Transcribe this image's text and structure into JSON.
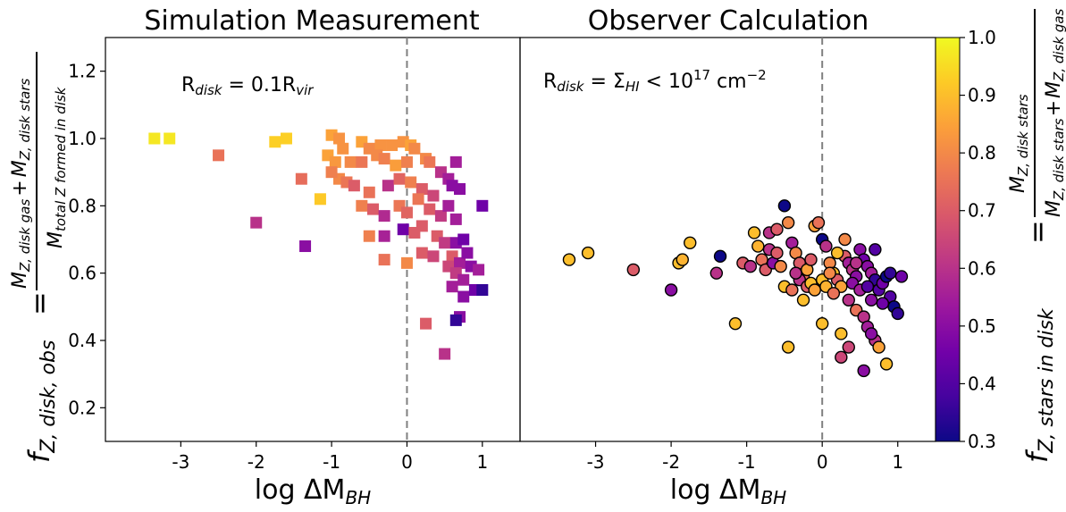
{
  "colors": {
    "colormap": [
      "#0d0887",
      "#46039f",
      "#7201a8",
      "#9c179e",
      "#bd3786",
      "#d8576b",
      "#ed7953",
      "#fb9f3a",
      "#fdca26",
      "#f0f921"
    ],
    "marker_edge": "#000000",
    "zero_line": "#808080"
  },
  "chart_data": [
    {
      "type": "scatter",
      "panel": "left",
      "marker": "square",
      "title": "Simulation Measurement",
      "annotation": "R_disk = 0.1R_vir",
      "annotation_parts": {
        "base": "R",
        "sub": "disk",
        "mid": " = 0.1R",
        "sub2": "vir"
      },
      "xlabel": "log ΔM_BH",
      "xlabel_parts": {
        "base": "log ΔM",
        "sub": "BH"
      },
      "ylabel": "f_Z,disk,obs = (M_Z,disk gas + M_Z,disk stars) / M_total Z formed in disk",
      "ylabel_parts": {
        "lhs": "f",
        "lhs_sub": "Z, disk, obs",
        "eq": "=",
        "numerator": "M_Z, disk gas + M_Z, disk stars",
        "numerator_parts": {
          "m1": "M",
          "s1": "Z, disk gas",
          "plus": "+",
          "m2": "M",
          "s2": "Z, disk stars"
        },
        "denominator": "M_total Z formed in disk",
        "denominator_parts": {
          "m": "M",
          "s": "total Z formed in disk"
        }
      },
      "xlim": [
        -4.0,
        1.5
      ],
      "ylim": [
        0.1,
        1.3
      ],
      "xticks": [
        -3,
        -2,
        -1,
        0,
        1
      ],
      "xtick_labels": [
        "-3",
        "-2",
        "-1",
        "0",
        "1"
      ],
      "yticks": [
        0.2,
        0.4,
        0.6,
        0.8,
        1.0,
        1.2
      ],
      "ytick_labels": [
        "0.2",
        "0.4",
        "0.6",
        "0.8",
        "1.0",
        "1.2"
      ],
      "vline_x": 0,
      "points": [
        [
          -3.35,
          1.0,
          0.97
        ],
        [
          -3.15,
          1.0,
          0.97
        ],
        [
          -2.5,
          0.95,
          0.75
        ],
        [
          -1.75,
          0.99,
          0.93
        ],
        [
          -1.6,
          1.0,
          0.93
        ],
        [
          -2.0,
          0.75,
          0.6
        ],
        [
          -1.35,
          0.68,
          0.5
        ],
        [
          -1.4,
          0.88,
          0.74
        ],
        [
          -1.15,
          0.82,
          0.92
        ],
        [
          -1.0,
          1.01,
          0.85
        ],
        [
          -0.9,
          1.0,
          0.82
        ],
        [
          -0.85,
          0.97,
          0.82
        ],
        [
          -1.05,
          0.95,
          0.85
        ],
        [
          -0.95,
          0.93,
          0.83
        ],
        [
          -0.75,
          0.93,
          0.8
        ],
        [
          -0.6,
          0.99,
          0.85
        ],
        [
          -0.5,
          0.97,
          0.8
        ],
        [
          -0.35,
          0.98,
          0.82
        ],
        [
          -0.2,
          0.98,
          0.82
        ],
        [
          -0.05,
          0.99,
          0.82
        ],
        [
          0.05,
          0.98,
          0.85
        ],
        [
          0.1,
          0.97,
          0.8
        ],
        [
          -0.6,
          0.93,
          0.76
        ],
        [
          -0.4,
          0.95,
          0.8
        ],
        [
          -0.3,
          0.94,
          0.78
        ],
        [
          -0.15,
          0.92,
          0.84
        ],
        [
          0.0,
          0.93,
          0.78
        ],
        [
          0.25,
          0.94,
          0.8
        ],
        [
          0.3,
          0.93,
          0.76
        ],
        [
          -0.9,
          0.88,
          0.8
        ],
        [
          -1.0,
          0.9,
          0.78
        ],
        [
          -0.8,
          0.87,
          0.76
        ],
        [
          -0.7,
          0.86,
          0.7
        ],
        [
          -0.5,
          0.84,
          0.75
        ],
        [
          -0.25,
          0.86,
          0.6
        ],
        [
          -0.1,
          0.88,
          0.72
        ],
        [
          0.05,
          0.87,
          0.78
        ],
        [
          0.2,
          0.85,
          0.7
        ],
        [
          0.35,
          0.83,
          0.65
        ],
        [
          0.45,
          0.9,
          0.6
        ],
        [
          0.55,
          0.88,
          0.55
        ],
        [
          0.6,
          0.86,
          0.5
        ],
        [
          0.65,
          0.93,
          0.55
        ],
        [
          0.7,
          0.85,
          0.5
        ],
        [
          -0.6,
          0.8,
          0.78
        ],
        [
          -0.45,
          0.79,
          0.7
        ],
        [
          -0.3,
          0.77,
          0.58
        ],
        [
          -0.1,
          0.8,
          0.76
        ],
        [
          0.0,
          0.78,
          0.72
        ],
        [
          0.15,
          0.82,
          0.76
        ],
        [
          0.3,
          0.79,
          0.7
        ],
        [
          0.45,
          0.77,
          0.62
        ],
        [
          0.55,
          0.8,
          0.55
        ],
        [
          0.65,
          0.76,
          0.55
        ],
        [
          1.0,
          0.8,
          0.45
        ],
        [
          -0.5,
          0.71,
          0.78
        ],
        [
          -0.3,
          0.71,
          0.56
        ],
        [
          -0.05,
          0.73,
          0.45
        ],
        [
          0.1,
          0.72,
          0.7
        ],
        [
          0.2,
          0.74,
          0.7
        ],
        [
          0.4,
          0.71,
          0.7
        ],
        [
          0.5,
          0.69,
          0.62
        ],
        [
          0.65,
          0.69,
          0.5
        ],
        [
          0.75,
          0.7,
          0.45
        ],
        [
          0.6,
          0.65,
          0.7
        ],
        [
          -0.3,
          0.64,
          0.75
        ],
        [
          0.0,
          0.63,
          0.8
        ],
        [
          0.2,
          0.66,
          0.7
        ],
        [
          0.35,
          0.65,
          0.65
        ],
        [
          0.55,
          0.62,
          0.65
        ],
        [
          0.7,
          0.63,
          0.55
        ],
        [
          0.8,
          0.66,
          0.5
        ],
        [
          0.65,
          0.6,
          0.62
        ],
        [
          0.75,
          0.58,
          0.55
        ],
        [
          0.85,
          0.62,
          0.5
        ],
        [
          0.95,
          0.61,
          0.55
        ],
        [
          0.6,
          0.56,
          0.55
        ],
        [
          0.75,
          0.53,
          0.5
        ],
        [
          0.9,
          0.55,
          0.45
        ],
        [
          1.0,
          0.55,
          0.35
        ],
        [
          0.7,
          0.47,
          0.5
        ],
        [
          0.65,
          0.46,
          0.35
        ],
        [
          0.25,
          0.45,
          0.7
        ],
        [
          0.5,
          0.36,
          0.6
        ]
      ]
    },
    {
      "type": "scatter",
      "panel": "right",
      "marker": "circle",
      "title": "Observer Calculation",
      "annotation": "R_disk = Σ_HI < 10^17 cm^-2",
      "annotation_parts": {
        "base": "R",
        "sub": "disk",
        "mid": " = Σ",
        "sub2": "HI",
        "mid2": " < 10",
        "sup": "17",
        "mid3": " cm",
        "sup2": "−2"
      },
      "xlabel": "log ΔM_BH",
      "xlabel_parts": {
        "base": "log ΔM",
        "sub": "BH"
      },
      "xlim": [
        -4.0,
        1.5
      ],
      "ylim": [
        0.1,
        1.3
      ],
      "xticks": [
        -3,
        -2,
        -1,
        0,
        1
      ],
      "xtick_labels": [
        "-3",
        "-2",
        "-1",
        "0",
        "1"
      ],
      "vline_x": 0,
      "points": [
        [
          -3.35,
          0.64,
          0.9
        ],
        [
          -3.1,
          0.66,
          0.9
        ],
        [
          -2.5,
          0.61,
          0.7
        ],
        [
          -2.0,
          0.55,
          0.5
        ],
        [
          -1.9,
          0.63,
          0.9
        ],
        [
          -1.75,
          0.69,
          0.9
        ],
        [
          -1.85,
          0.64,
          0.88
        ],
        [
          -1.35,
          0.65,
          0.3
        ],
        [
          -1.4,
          0.6,
          0.6
        ],
        [
          -1.15,
          0.45,
          0.9
        ],
        [
          -1.05,
          0.63,
          0.7
        ],
        [
          -0.95,
          0.62,
          0.6
        ],
        [
          -0.9,
          0.72,
          0.9
        ],
        [
          -0.85,
          0.68,
          0.88
        ],
        [
          -0.8,
          0.64,
          0.75
        ],
        [
          -0.75,
          0.61,
          0.7
        ],
        [
          -0.7,
          0.67,
          0.6
        ],
        [
          -0.65,
          0.63,
          0.5
        ],
        [
          -0.6,
          0.66,
          0.7
        ],
        [
          -0.55,
          0.62,
          0.8
        ],
        [
          -0.5,
          0.8,
          0.3
        ],
        [
          -0.45,
          0.75,
          0.8
        ],
        [
          -0.4,
          0.69,
          0.55
        ],
        [
          -0.35,
          0.66,
          0.8
        ],
        [
          -0.3,
          0.63,
          0.7
        ],
        [
          -0.25,
          0.59,
          0.75
        ],
        [
          -0.2,
          0.61,
          0.85
        ],
        [
          -0.15,
          0.64,
          0.7
        ],
        [
          -0.1,
          0.74,
          0.85
        ],
        [
          -0.05,
          0.75,
          0.75
        ],
        [
          0.0,
          0.7,
          0.3
        ],
        [
          0.05,
          0.68,
          0.6
        ],
        [
          0.1,
          0.63,
          0.8
        ],
        [
          0.15,
          0.6,
          0.9
        ],
        [
          0.2,
          0.58,
          0.7
        ],
        [
          0.25,
          0.56,
          0.85
        ],
        [
          0.3,
          0.65,
          0.7
        ],
        [
          0.35,
          0.63,
          0.55
        ],
        [
          0.4,
          0.61,
          0.6
        ],
        [
          0.45,
          0.59,
          0.5
        ],
        [
          0.5,
          0.67,
          0.5
        ],
        [
          0.55,
          0.64,
          0.45
        ],
        [
          0.6,
          0.62,
          0.5
        ],
        [
          0.65,
          0.6,
          0.55
        ],
        [
          0.7,
          0.58,
          0.35
        ],
        [
          0.75,
          0.55,
          0.4
        ],
        [
          0.8,
          0.57,
          0.45
        ],
        [
          0.85,
          0.59,
          0.3
        ],
        [
          0.9,
          0.53,
          0.4
        ],
        [
          0.95,
          0.5,
          0.3
        ],
        [
          1.0,
          0.48,
          0.35
        ],
        [
          1.05,
          0.59,
          0.45
        ],
        [
          -0.7,
          0.72,
          0.6
        ],
        [
          -0.6,
          0.73,
          0.7
        ],
        [
          -0.5,
          0.56,
          0.9
        ],
        [
          -0.45,
          0.38,
          0.9
        ],
        [
          -0.4,
          0.55,
          0.75
        ],
        [
          -0.3,
          0.58,
          0.6
        ],
        [
          -0.25,
          0.52,
          0.9
        ],
        [
          -0.2,
          0.56,
          0.7
        ],
        [
          -0.15,
          0.57,
          0.9
        ],
        [
          -0.1,
          0.55,
          0.85
        ],
        [
          0.0,
          0.45,
          0.9
        ],
        [
          0.0,
          0.58,
          0.9
        ],
        [
          0.05,
          0.56,
          0.88
        ],
        [
          0.1,
          0.6,
          0.8
        ],
        [
          0.15,
          0.54,
          0.75
        ],
        [
          0.2,
          0.66,
          0.9
        ],
        [
          0.25,
          0.42,
          0.9
        ],
        [
          0.3,
          0.7,
          0.8
        ],
        [
          0.35,
          0.52,
          0.6
        ],
        [
          0.4,
          0.57,
          0.5
        ],
        [
          0.45,
          0.49,
          0.75
        ],
        [
          0.5,
          0.55,
          0.55
        ],
        [
          0.55,
          0.47,
          0.6
        ],
        [
          0.6,
          0.44,
          0.55
        ],
        [
          0.65,
          0.52,
          0.5
        ],
        [
          0.7,
          0.4,
          0.6
        ],
        [
          0.75,
          0.38,
          0.85
        ],
        [
          0.7,
          0.67,
          0.4
        ],
        [
          0.55,
          0.31,
          0.5
        ],
        [
          0.25,
          0.35,
          0.65
        ],
        [
          0.35,
          0.38,
          0.65
        ],
        [
          0.65,
          0.42,
          0.5
        ],
        [
          0.8,
          0.51,
          0.45
        ],
        [
          0.85,
          0.33,
          0.9
        ],
        [
          0.9,
          0.6,
          0.35
        ],
        [
          0.6,
          0.56,
          0.4
        ],
        [
          -0.35,
          0.6,
          0.6
        ],
        [
          0.45,
          0.63,
          0.6
        ]
      ]
    }
  ],
  "colorbar": {
    "label": "f_Z,stars in disk = M_Z,disk stars / (M_Z,disk stars + M_Z,disk gas)",
    "label_parts": {
      "lhs": "f",
      "lhs_sub": "Z, stars in disk",
      "eq": "=",
      "numerator": "M_Z, disk stars",
      "numerator_parts": {
        "m": "M",
        "s": "Z, disk stars"
      },
      "denominator": "M_Z, disk stars + M_Z, disk gas",
      "denominator_parts": {
        "m1": "M",
        "s1": "Z, disk stars",
        "plus": "+",
        "m2": "M",
        "s2": "Z, disk gas"
      }
    },
    "range": [
      0.3,
      1.0
    ],
    "ticks": [
      0.3,
      0.4,
      0.5,
      0.6,
      0.7,
      0.8,
      0.9,
      1.0
    ],
    "tick_labels": [
      "0.3",
      "0.4",
      "0.5",
      "0.6",
      "0.7",
      "0.8",
      "0.9",
      "1.0"
    ]
  }
}
